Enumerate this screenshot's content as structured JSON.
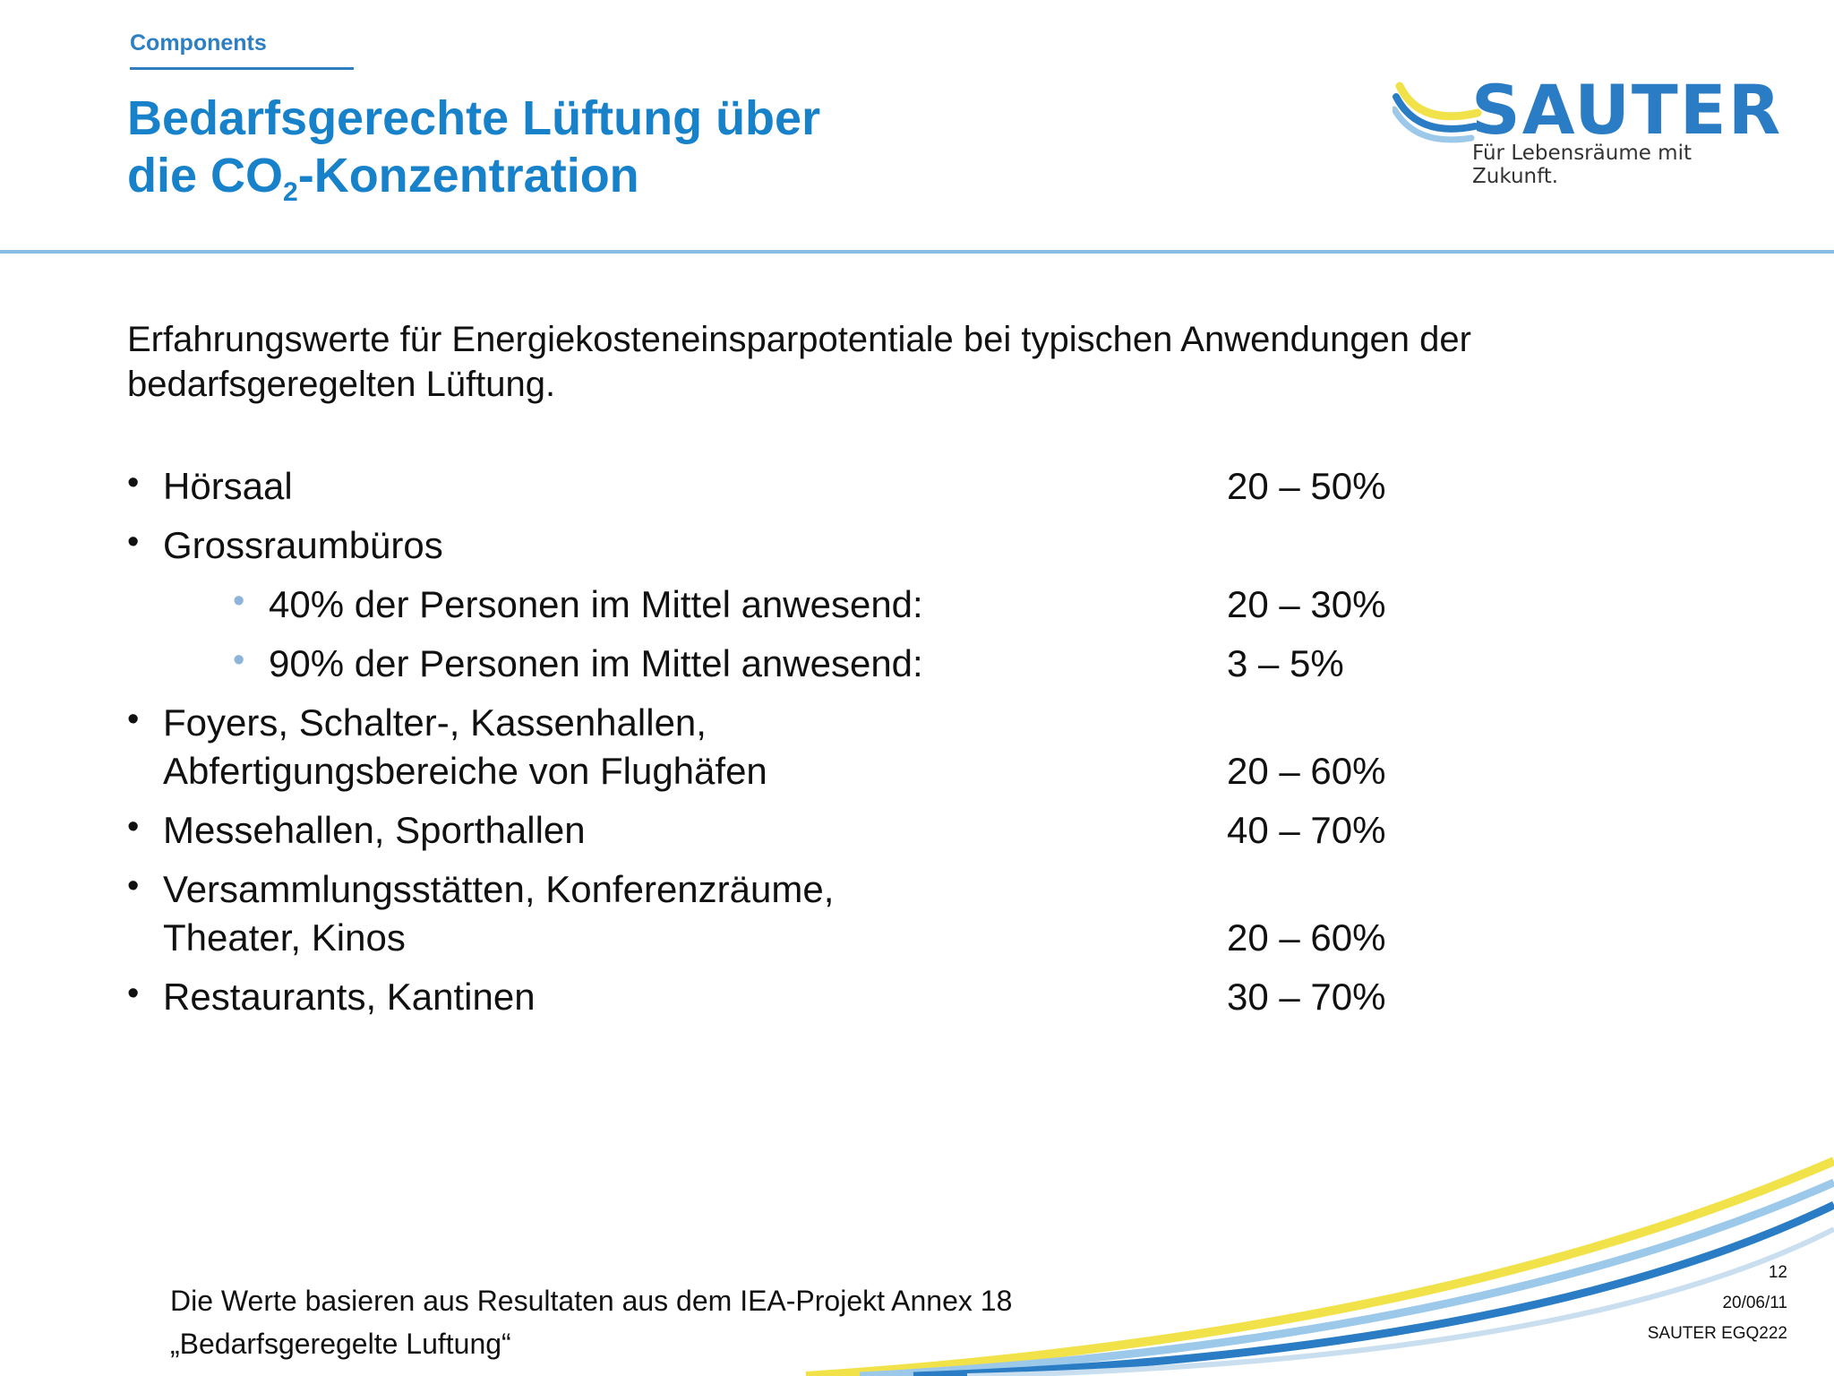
{
  "header": {
    "section": "Components",
    "title_line1": "Bedarfsgerechte Lüftung über",
    "title_line2_pre": "die CO",
    "title_sub": "2",
    "title_line2_post": "-Konzentration"
  },
  "logo": {
    "name": "SAUTER",
    "tagline": "Für Lebensräume mit Zukunft."
  },
  "intro": "Erfahrungswerte für Energiekosteneinsparpotentiale bei typischen Anwendungen der bedarfsgeregelten Lüftung.",
  "items": [
    {
      "label": "Hörsaal",
      "value": "20 – 50%"
    },
    {
      "label": "Grossraumbüros",
      "value": ""
    },
    {
      "label": "40% der Personen im Mittel anwesend:",
      "value": "20 – 30%"
    },
    {
      "label": "90% der Personen im Mittel anwesend:",
      "value": "3 – 5%"
    },
    {
      "label_line1": "Foyers, Schalter-, Kassenhallen,",
      "label_line2": "Abfertigungsbereiche von Flughäfen",
      "value": "20 – 60%"
    },
    {
      "label": "Messehallen, Sporthallen",
      "value": "40 – 70%"
    },
    {
      "label_line1": "Versammlungsstätten, Konferenzräume,",
      "label_line2": "Theater, Kinos",
      "value": "20 – 60%"
    },
    {
      "label": "Restaurants, Kantinen",
      "value": "30 – 70%"
    }
  ],
  "bullet_glyph": "•",
  "footnote": {
    "line1": "Die Werte basieren aus Resultaten aus dem IEA-Projekt Annex 18",
    "line2": "„Bedarfsgeregelte Luftung“"
  },
  "meta": {
    "page": "12",
    "date": "20/06/11",
    "doc": "SAUTER EGQ222"
  },
  "colors": {
    "brand_blue": "#1781c9",
    "rule_blue": "#8bbce3",
    "swoosh_yellow": "#f2e24a",
    "swoosh_blue": "#2a7dc4",
    "swoosh_light": "#9cc9ea"
  }
}
